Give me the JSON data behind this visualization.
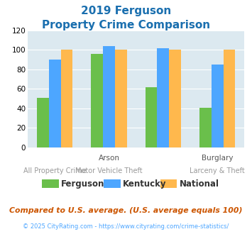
{
  "title_line1": "2019 Ferguson",
  "title_line2": "Property Crime Comparison",
  "title_color": "#1a6faf",
  "ferguson": [
    51,
    96,
    62,
    41
  ],
  "kentucky": [
    90,
    104,
    102,
    85
  ],
  "national": [
    100,
    100,
    100,
    100
  ],
  "ferguson_color": "#6abf4b",
  "kentucky_color": "#4da6ff",
  "national_color": "#ffb84d",
  "ylim": [
    0,
    120
  ],
  "yticks": [
    0,
    20,
    40,
    60,
    80,
    100,
    120
  ],
  "legend_labels": [
    "Ferguson",
    "Kentucky",
    "National"
  ],
  "top_xlabels": [
    "",
    "Arson",
    "",
    "Burglary"
  ],
  "bot_xlabels": [
    "All Property Crime",
    "Motor Vehicle Theft",
    "",
    "Larceny & Theft"
  ],
  "footnote1": "Compared to U.S. average. (U.S. average equals 100)",
  "footnote2": "© 2025 CityRating.com - https://www.cityrating.com/crime-statistics/",
  "footnote1_color": "#cc5500",
  "footnote2_color": "#4da6ff",
  "bg_color": "#dce9f0"
}
